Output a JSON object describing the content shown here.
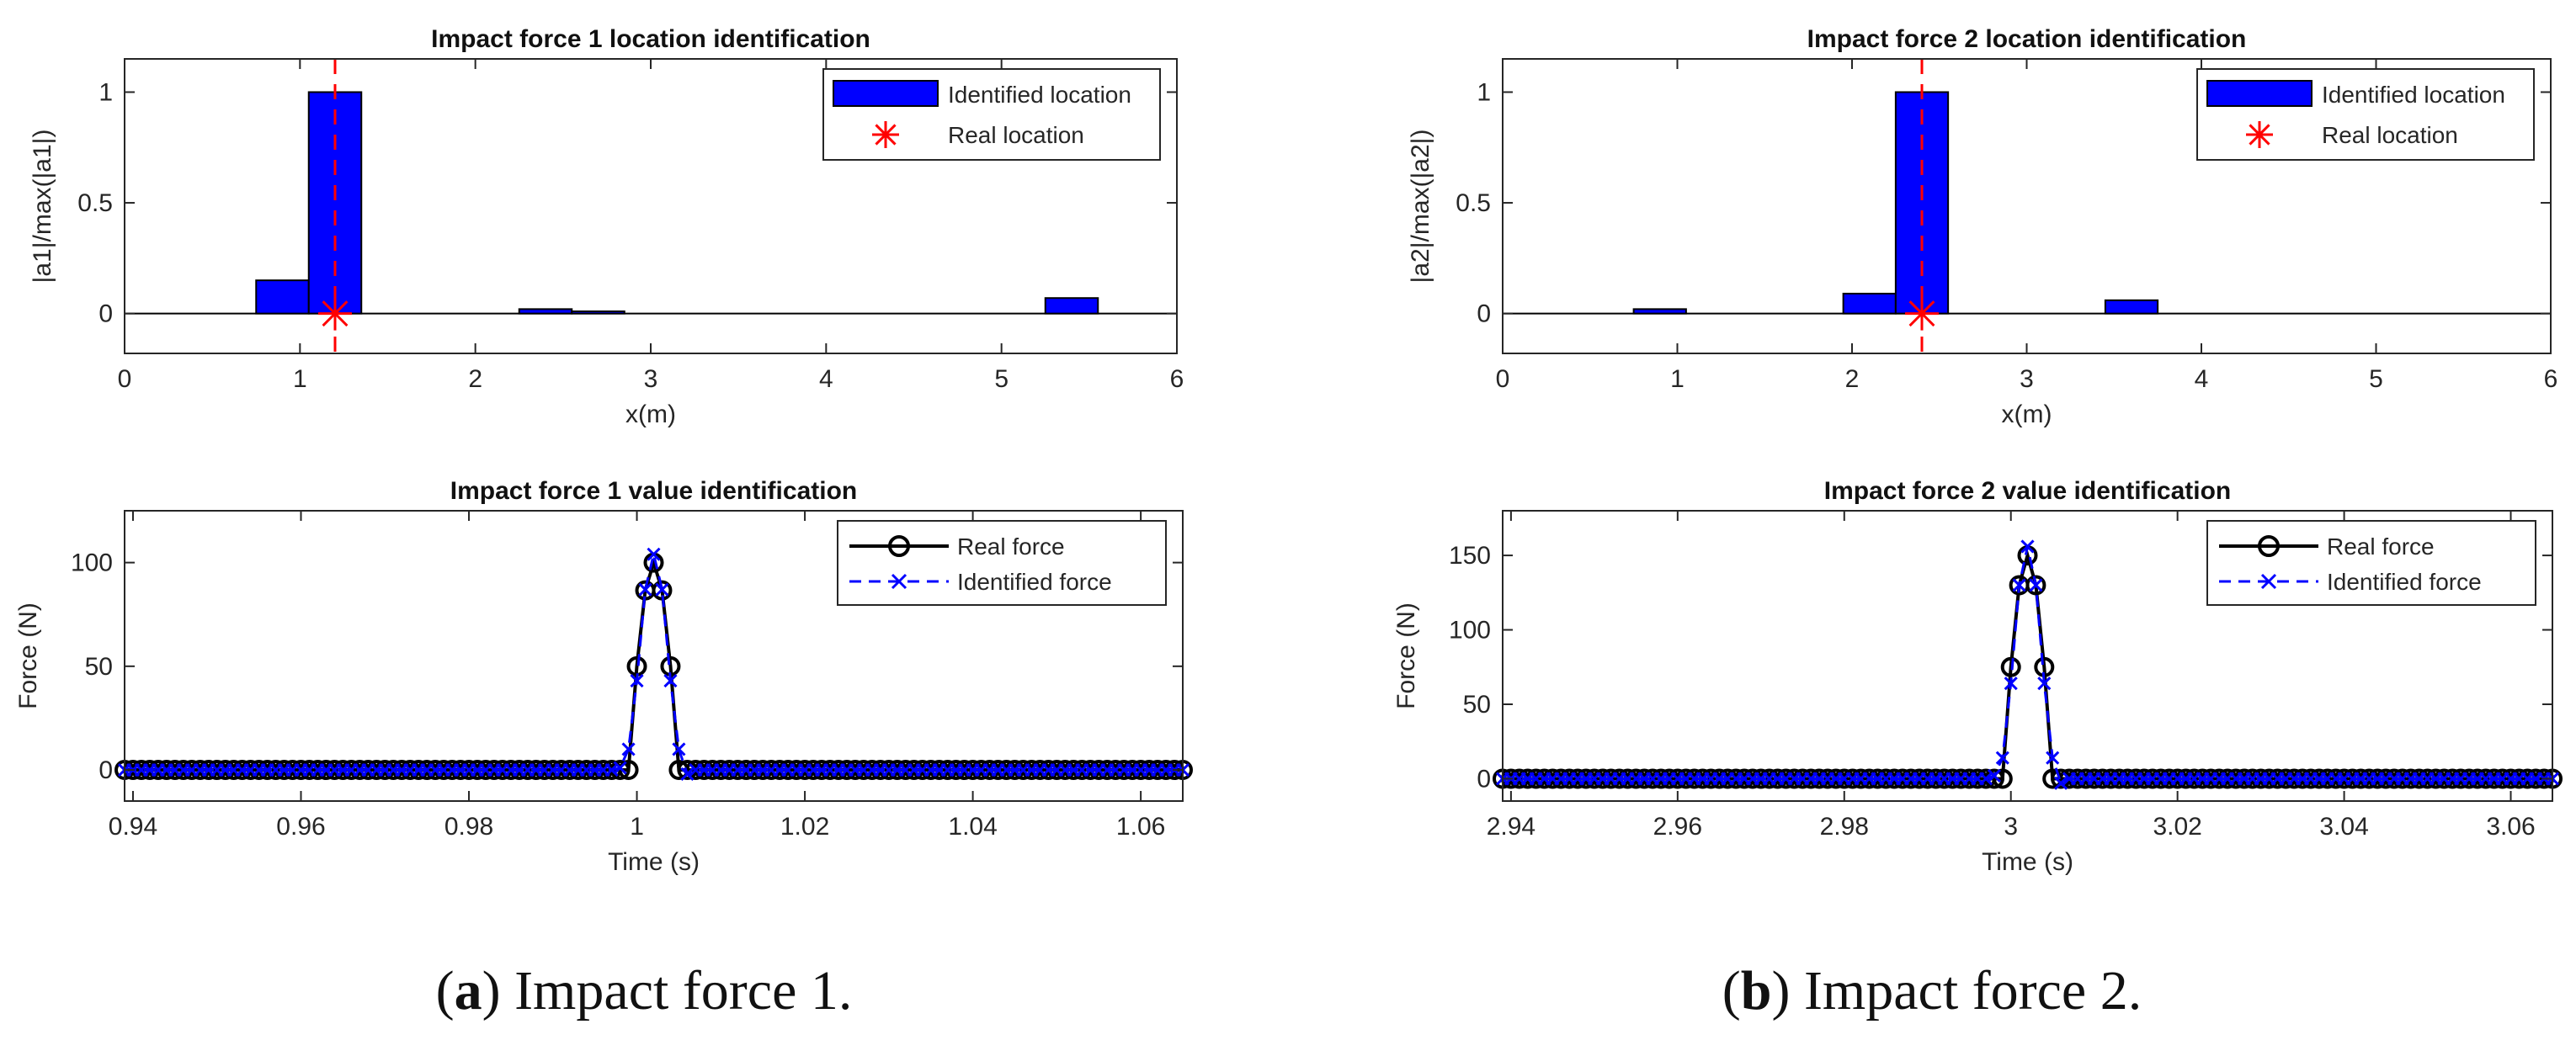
{
  "colors": {
    "bar": "#0000ff",
    "real_location": "#ff0000",
    "real_force": "#000000",
    "identified_force": "#0000ff",
    "axis": "#262626"
  },
  "captions": [
    {
      "label": "a",
      "text": "Impact force 1."
    },
    {
      "label": "b",
      "text": "Impact force 2."
    }
  ],
  "chart_data": [
    {
      "id": "loc1",
      "type": "bar",
      "title": "Impact force 1 location identification",
      "xlabel": "x(m)",
      "ylabel": "|a1|/max(|a1|)",
      "xlim": [
        0,
        6
      ],
      "ylim": [
        -0.18,
        1.15
      ],
      "xticks": [
        0,
        1,
        2,
        3,
        4,
        5,
        6
      ],
      "xtick_labels": [
        "0",
        "1",
        "2",
        "3",
        "4",
        "5",
        "6"
      ],
      "yticks": [
        0,
        0.5,
        1
      ],
      "ytick_labels": [
        "0",
        "0.5",
        "1"
      ],
      "bar_width": 0.3,
      "bars": [
        {
          "x": 0.9,
          "value": 0.15
        },
        {
          "x": 1.2,
          "value": 1.0
        },
        {
          "x": 2.4,
          "value": 0.02
        },
        {
          "x": 2.7,
          "value": 0.01
        },
        {
          "x": 5.4,
          "value": 0.07
        }
      ],
      "real_location": 1.2,
      "legend": {
        "location": "top-right",
        "entries": [
          "Identified location",
          "Real location"
        ]
      }
    },
    {
      "id": "loc2",
      "type": "bar",
      "title": "Impact force 2 location identification",
      "xlabel": "x(m)",
      "ylabel": "|a2|/max(|a2|)",
      "xlim": [
        0,
        6
      ],
      "ylim": [
        -0.18,
        1.15
      ],
      "xticks": [
        0,
        1,
        2,
        3,
        4,
        5,
        6
      ],
      "xtick_labels": [
        "0",
        "1",
        "2",
        "3",
        "4",
        "5",
        "6"
      ],
      "yticks": [
        0,
        0.5,
        1
      ],
      "ytick_labels": [
        "0",
        "0.5",
        "1"
      ],
      "bar_width": 0.3,
      "bars": [
        {
          "x": 0.9,
          "value": 0.02
        },
        {
          "x": 2.1,
          "value": 0.09
        },
        {
          "x": 2.4,
          "value": 1.0
        },
        {
          "x": 3.6,
          "value": 0.06
        }
      ],
      "real_location": 2.4,
      "legend": {
        "location": "top-right",
        "entries": [
          "Identified location",
          "Real location"
        ]
      }
    },
    {
      "id": "val1",
      "type": "line",
      "title": "Impact force 1 value identification",
      "xlabel": "Time (s)",
      "ylabel": "Force (N)",
      "xlim": [
        0.939,
        1.065
      ],
      "ylim": [
        -15,
        125
      ],
      "xticks": [
        0.94,
        0.96,
        0.98,
        1.0,
        1.02,
        1.04,
        1.06
      ],
      "xtick_labels": [
        "0.94",
        "0.96",
        "0.98",
        "1",
        "1.02",
        "1.04",
        "1.06"
      ],
      "yticks": [
        0,
        50,
        100
      ],
      "ytick_labels": [
        "0",
        "50",
        "100"
      ],
      "t_start": 0.939,
      "t_end": 1.065,
      "dt": 0.001,
      "series": [
        {
          "name": "Real force",
          "style": "solid-circle",
          "pulse": [
            [
              0.999,
              0
            ],
            [
              1.0,
              50
            ],
            [
              1.001,
              86.6
            ],
            [
              1.002,
              100
            ],
            [
              1.003,
              86.6
            ],
            [
              1.004,
              50
            ],
            [
              1.005,
              0
            ]
          ]
        },
        {
          "name": "Identified force",
          "style": "dashed-x",
          "pulse": [
            [
              0.998,
              1
            ],
            [
              0.999,
              10
            ],
            [
              1.0,
              43
            ],
            [
              1.001,
              87
            ],
            [
              1.002,
              104
            ],
            [
              1.003,
              87
            ],
            [
              1.004,
              43
            ],
            [
              1.005,
              10
            ],
            [
              1.006,
              -2
            ]
          ]
        }
      ],
      "legend": {
        "location": "top-right",
        "entries": [
          "Real force",
          "Identified force"
        ]
      }
    },
    {
      "id": "val2",
      "type": "line",
      "title": "Impact force 2 value identification",
      "xlabel": "Time (s)",
      "ylabel": "Force (N)",
      "xlim": [
        2.939,
        3.065
      ],
      "ylim": [
        -15,
        180
      ],
      "xticks": [
        2.94,
        2.96,
        2.98,
        3.0,
        3.02,
        3.04,
        3.06
      ],
      "xtick_labels": [
        "2.94",
        "2.96",
        "2.98",
        "3",
        "3.02",
        "3.04",
        "3.06"
      ],
      "yticks": [
        0,
        50,
        100,
        150
      ],
      "ytick_labels": [
        "0",
        "50",
        "100",
        "150"
      ],
      "t_start": 2.939,
      "t_end": 3.065,
      "dt": 0.001,
      "series": [
        {
          "name": "Real force",
          "style": "solid-circle",
          "pulse": [
            [
              2.999,
              0
            ],
            [
              3.0,
              75
            ],
            [
              3.001,
              130
            ],
            [
              3.002,
              150
            ],
            [
              3.003,
              130
            ],
            [
              3.004,
              75
            ],
            [
              3.005,
              0
            ]
          ]
        },
        {
          "name": "Identified force",
          "style": "dashed-x",
          "pulse": [
            [
              2.998,
              2
            ],
            [
              2.999,
              14
            ],
            [
              3.0,
              64
            ],
            [
              3.001,
              130
            ],
            [
              3.002,
              156
            ],
            [
              3.003,
              130
            ],
            [
              3.004,
              64
            ],
            [
              3.005,
              14
            ],
            [
              3.006,
              -3
            ]
          ]
        }
      ],
      "legend": {
        "location": "top-right",
        "entries": [
          "Real force",
          "Identified force"
        ]
      }
    }
  ]
}
